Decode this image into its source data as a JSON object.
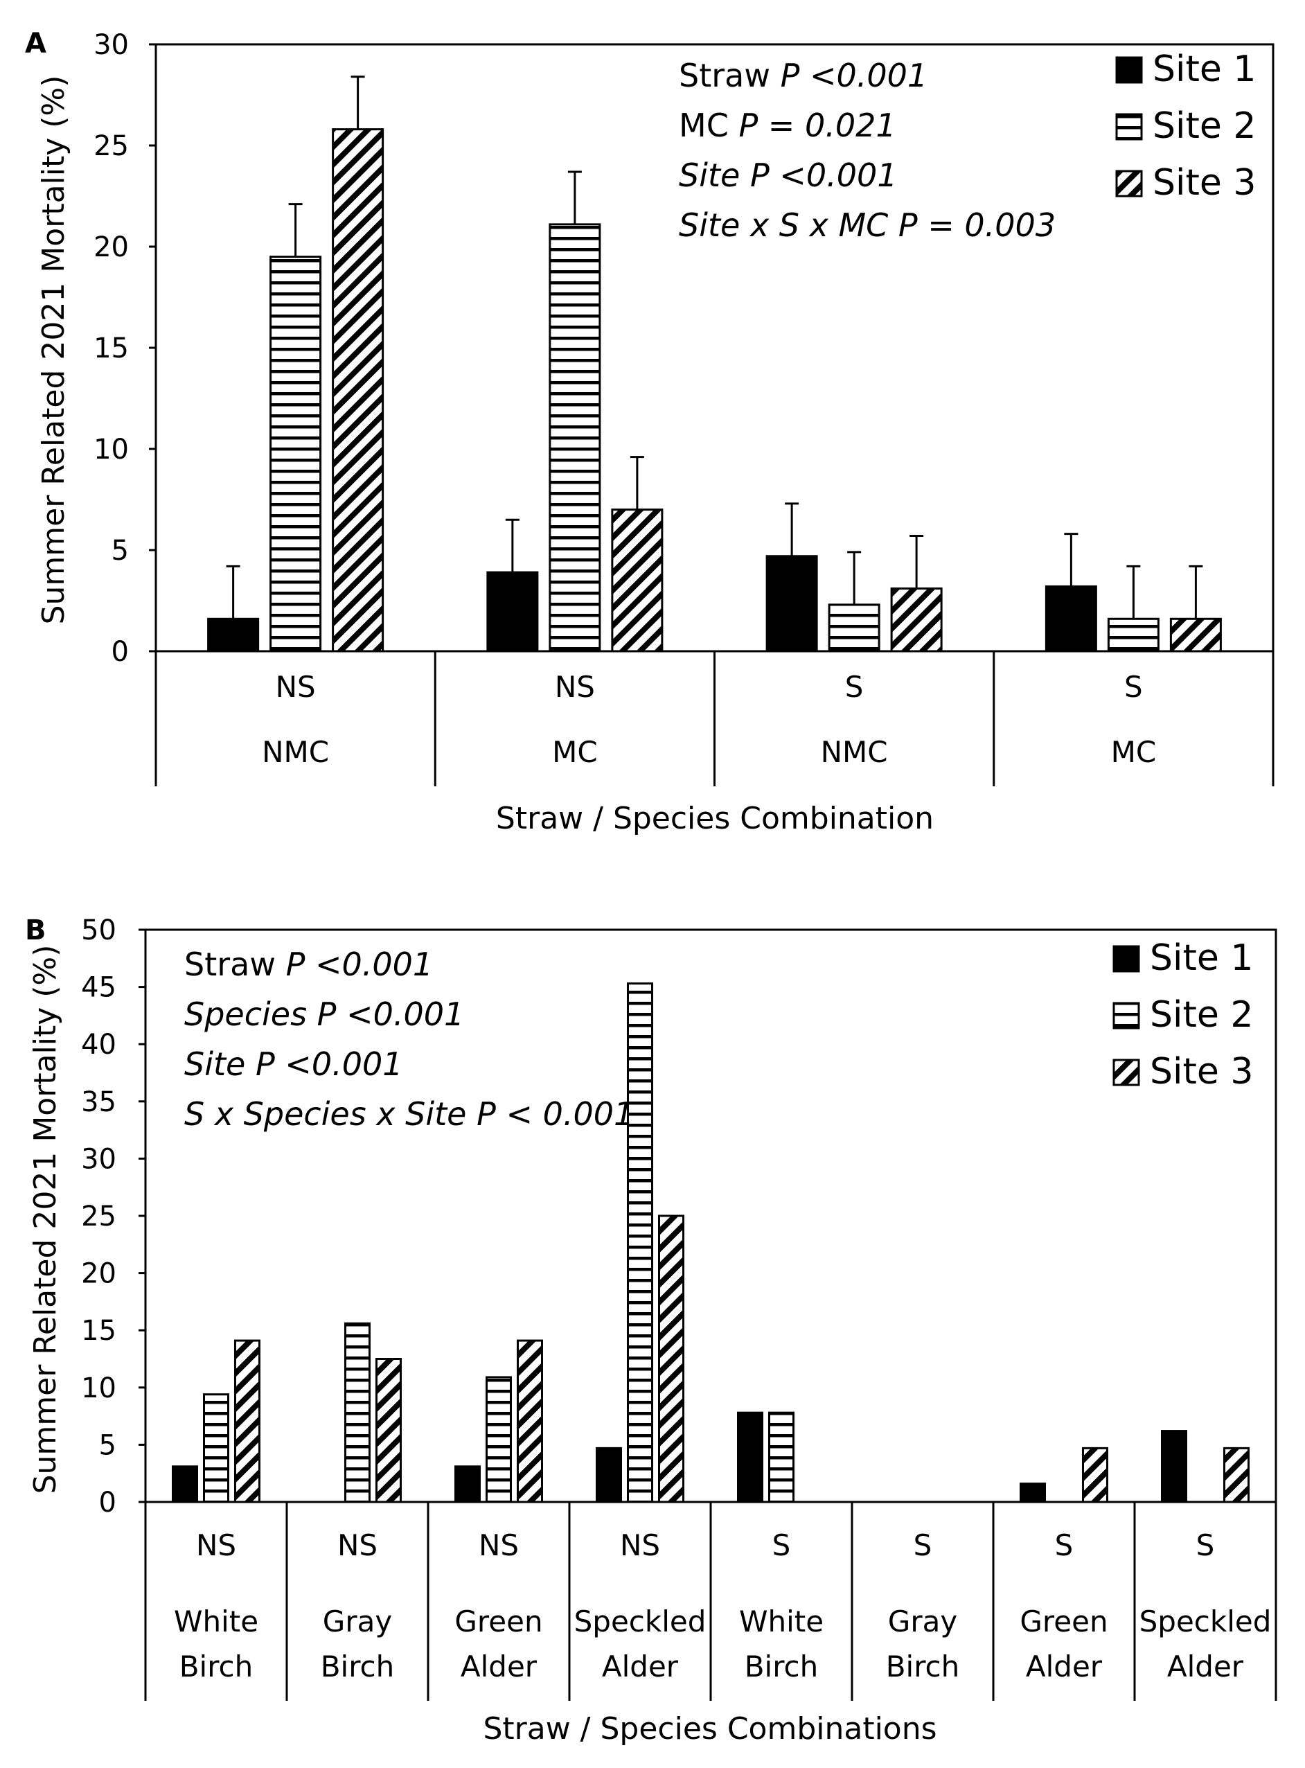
{
  "chart_data": [
    {
      "panel": "A",
      "type": "bar",
      "xlabel": "Straw / Species Combination",
      "ylabel": "Summer Related  2021 Mortality (%)",
      "ylim": [
        0,
        30
      ],
      "yticks": [
        0,
        5,
        10,
        15,
        20,
        25,
        30
      ],
      "groups": [
        {
          "straw": "NS",
          "species": "NMC"
        },
        {
          "straw": "NS",
          "species": "MC"
        },
        {
          "straw": "S",
          "species": "NMC"
        },
        {
          "straw": "S",
          "species": "MC"
        }
      ],
      "series": [
        {
          "name": "Site 1",
          "pattern": "solid",
          "values": [
            1.6,
            3.9,
            4.7,
            3.2
          ],
          "errors": [
            2.6,
            2.6,
            2.6,
            2.6
          ]
        },
        {
          "name": "Site 2",
          "pattern": "hlines",
          "values": [
            19.5,
            21.1,
            2.3,
            1.6
          ],
          "errors": [
            2.6,
            2.6,
            2.6,
            2.6
          ]
        },
        {
          "name": "Site 3",
          "pattern": "diag",
          "values": [
            25.8,
            7.0,
            3.1,
            1.6
          ],
          "errors": [
            2.6,
            2.6,
            2.6,
            2.6
          ]
        }
      ],
      "legend_position": "top-right",
      "annotations": [
        {
          "plain": "Straw ",
          "italic": "P  <0.001"
        },
        {
          "plain": "MC ",
          "italic": "P = 0.021"
        },
        {
          "plain": "",
          "italic": "Site P <0.001"
        },
        {
          "plain": "",
          "italic": "Site x S x MC  P = 0.003"
        }
      ]
    },
    {
      "panel": "B",
      "type": "bar",
      "xlabel": "Straw / Species Combinations",
      "ylabel": "Summer Related  2021 Mortality (%)",
      "ylim": [
        0,
        50
      ],
      "yticks": [
        0,
        5,
        10,
        15,
        20,
        25,
        30,
        35,
        40,
        45,
        50
      ],
      "groups": [
        {
          "straw": "NS",
          "species": [
            "White",
            "Birch"
          ]
        },
        {
          "straw": "NS",
          "species": [
            "Gray",
            "Birch"
          ]
        },
        {
          "straw": "NS",
          "species": [
            "Green",
            "Alder"
          ]
        },
        {
          "straw": "NS",
          "species": [
            "Speckled",
            "Alder"
          ]
        },
        {
          "straw": "S",
          "species": [
            "White",
            "Birch"
          ]
        },
        {
          "straw": "S",
          "species": [
            "Gray",
            "Birch"
          ]
        },
        {
          "straw": "S",
          "species": [
            "Green",
            "Alder"
          ]
        },
        {
          "straw": "S",
          "species": [
            "Speckled",
            "Alder"
          ]
        }
      ],
      "series": [
        {
          "name": "Site 1",
          "pattern": "solid",
          "values": [
            3.1,
            0,
            3.1,
            4.7,
            7.8,
            0,
            1.6,
            6.2
          ]
        },
        {
          "name": "Site 2",
          "pattern": "hlines",
          "values": [
            9.4,
            15.6,
            10.9,
            45.3,
            7.8,
            0,
            0,
            0
          ]
        },
        {
          "name": "Site 3",
          "pattern": "diag",
          "values": [
            14.1,
            12.5,
            14.1,
            25.0,
            0,
            0,
            4.7,
            4.7
          ]
        }
      ],
      "legend_position": "top-right",
      "annotations": [
        {
          "plain": "Straw ",
          "italic": "P  <0.001"
        },
        {
          "plain": "",
          "italic": "Species P <0.001"
        },
        {
          "plain": "",
          "italic": "Site P <0.001"
        },
        {
          "plain": "",
          "italic": "S x Species x Site P < 0.001"
        }
      ]
    }
  ]
}
